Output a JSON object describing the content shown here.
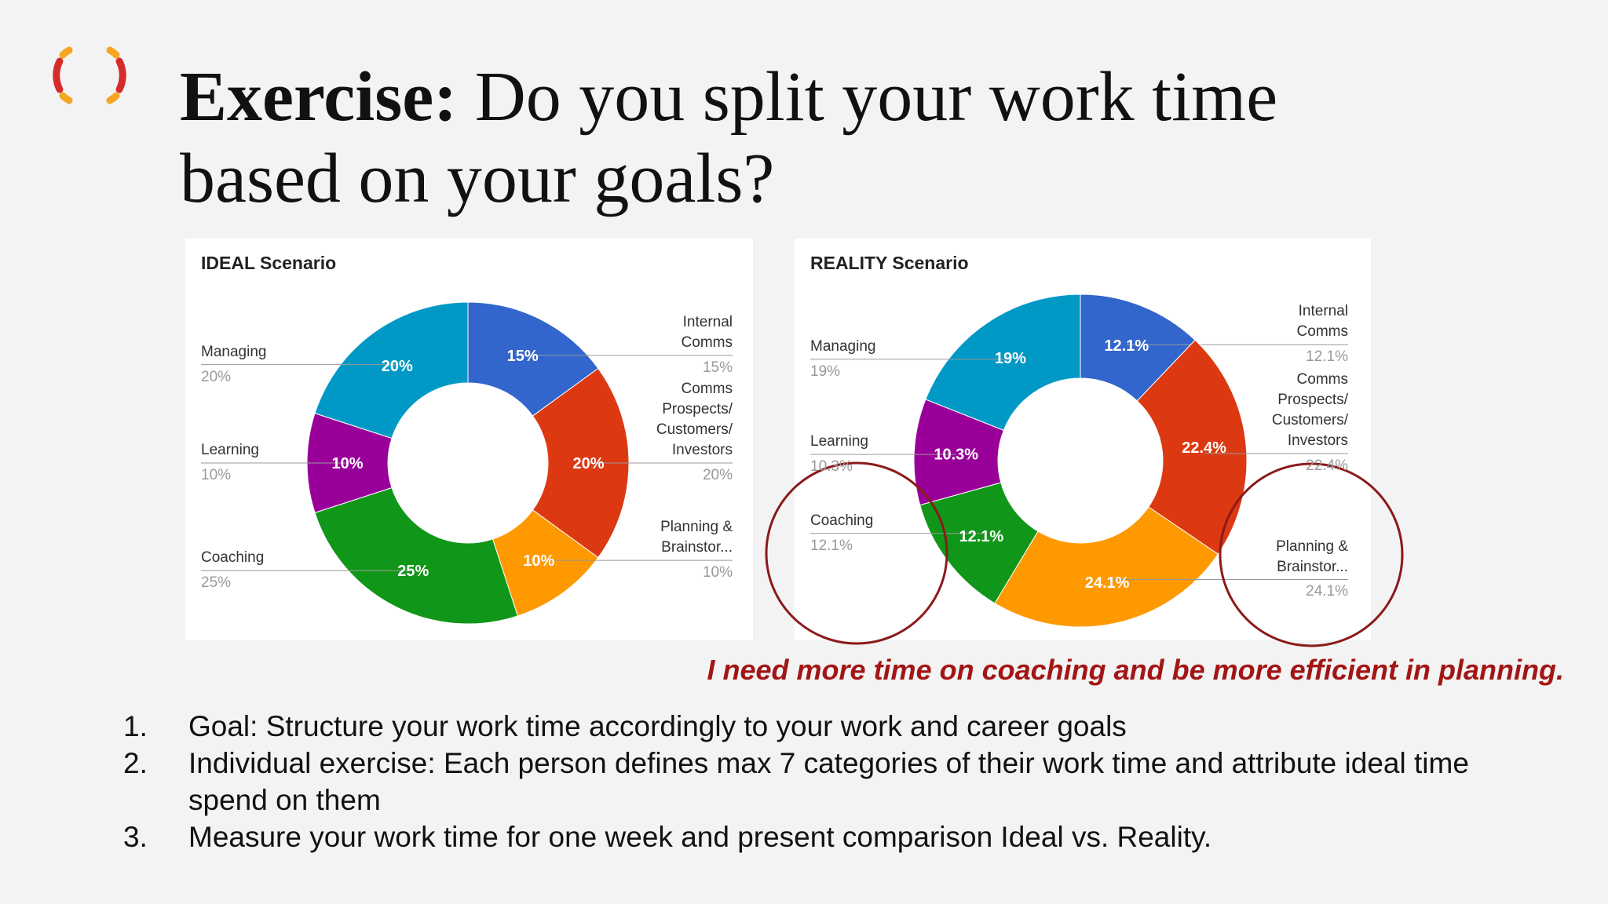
{
  "title_bold": "Exercise:",
  "title": "Do you split your work time based on your goals?",
  "chart_data": [
    {
      "type": "pie",
      "donut": true,
      "title": "IDEAL Scenario",
      "categories": [
        "Internal Comms",
        "Comms Prospects/ Customers/ Investors",
        "Planning & Brainstor...",
        "Coaching",
        "Learning",
        "Managing"
      ],
      "values": [
        15,
        20,
        10,
        25,
        10,
        20
      ],
      "value_labels": [
        "15%",
        "20%",
        "10%",
        "25%",
        "10%",
        "20%"
      ],
      "colors": [
        "#3366cc",
        "#dc3912",
        "#ff9900",
        "#109618",
        "#990099",
        "#0099c6"
      ]
    },
    {
      "type": "pie",
      "donut": true,
      "title": "REALITY Scenario",
      "categories": [
        "Internal Comms",
        "Comms Prospects/ Customers/ Investors",
        "Planning & Brainstor...",
        "Coaching",
        "Learning",
        "Managing"
      ],
      "values": [
        12.1,
        22.4,
        24.1,
        12.1,
        10.3,
        19
      ],
      "value_labels": [
        "12.1%",
        "22.4%",
        "24.1%",
        "12.1%",
        "10.3%",
        "19%"
      ],
      "colors": [
        "#3366cc",
        "#dc3912",
        "#ff9900",
        "#109618",
        "#990099",
        "#0099c6"
      ]
    }
  ],
  "note": "I need more time on coaching and be more efficient in planning.",
  "list": [
    {
      "number": "1.",
      "text": "Goal: Structure your work time accordingly to your work and career goals"
    },
    {
      "number": "2.",
      "text": "Individual exercise: Each person defines max 7 categories of their work time and attribute ideal time spend on them"
    },
    {
      "number": "3.",
      "text": "Measure your work time for one week and present comparison Ideal vs. Reality."
    }
  ]
}
